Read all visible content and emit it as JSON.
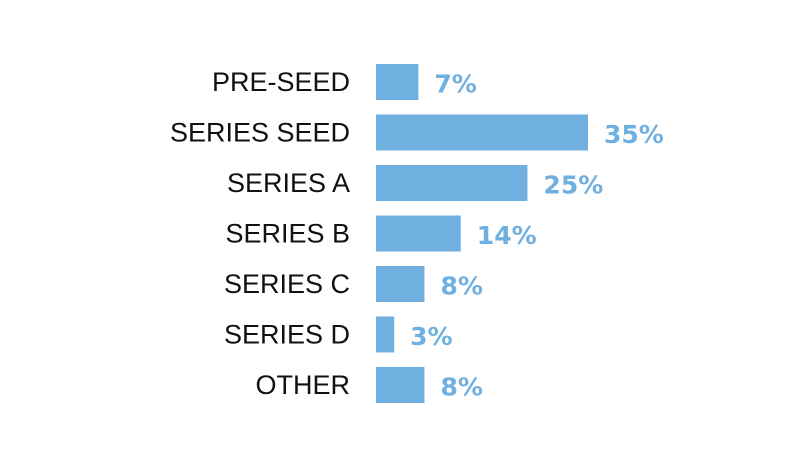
{
  "chart_data": {
    "type": "bar",
    "orientation": "horizontal",
    "categories": [
      "PRE-SEED",
      "SERIES SEED",
      "SERIES A",
      "SERIES B",
      "SERIES C",
      "SERIES D",
      "OTHER"
    ],
    "values": [
      7,
      35,
      25,
      14,
      8,
      3,
      8
    ],
    "value_labels": [
      "7%",
      "35%",
      "25%",
      "14%",
      "8%",
      "3%",
      "8%"
    ],
    "unit": "%",
    "xlim": [
      0,
      35
    ],
    "grid": false,
    "legend": "none",
    "title": "",
    "xlabel": "",
    "ylabel": ""
  },
  "colors": {
    "bar": "#6fb0e0",
    "value_text": "#6fb0e0",
    "category_text": "#111111",
    "background": "#ffffff"
  }
}
